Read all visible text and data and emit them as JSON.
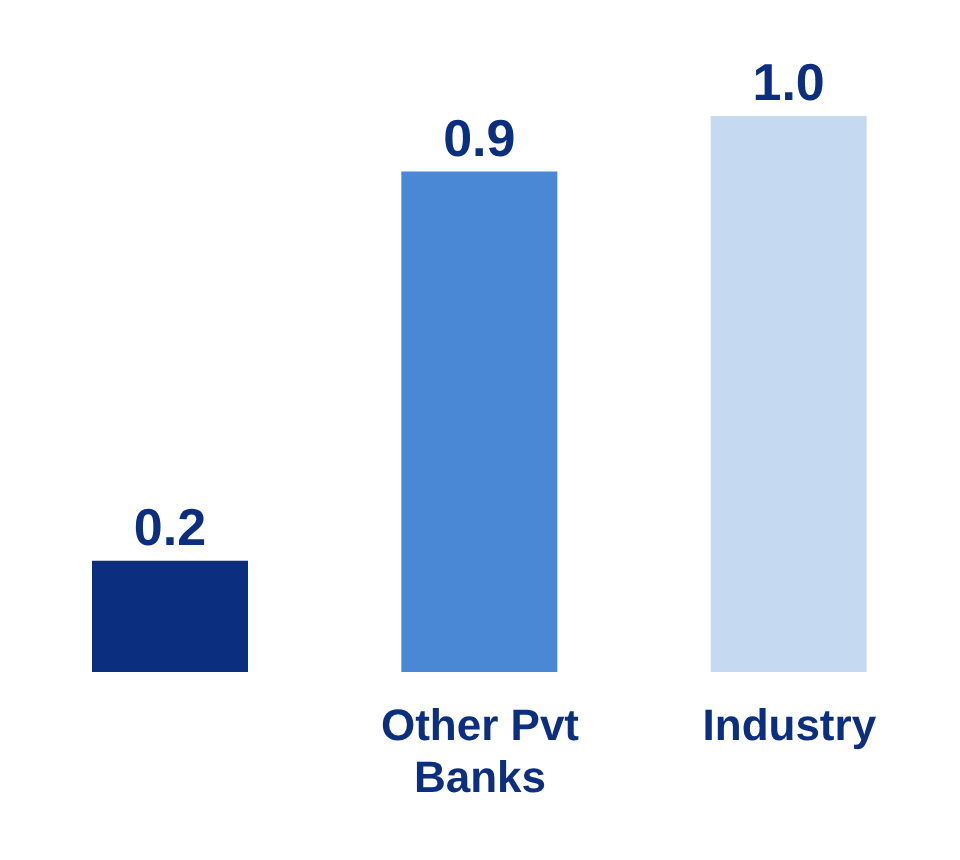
{
  "chart_data": {
    "type": "bar",
    "categories": [
      null,
      "Other Pvt Banks",
      "Industry"
    ],
    "values": [
      0.2,
      0.9,
      1.0
    ],
    "colors": [
      "#0b2e7e",
      "#4a88d6",
      "#c5d9f0"
    ],
    "value_labels": [
      "0.2",
      "0.9",
      "1.0"
    ],
    "grid": false,
    "legend": false
  }
}
